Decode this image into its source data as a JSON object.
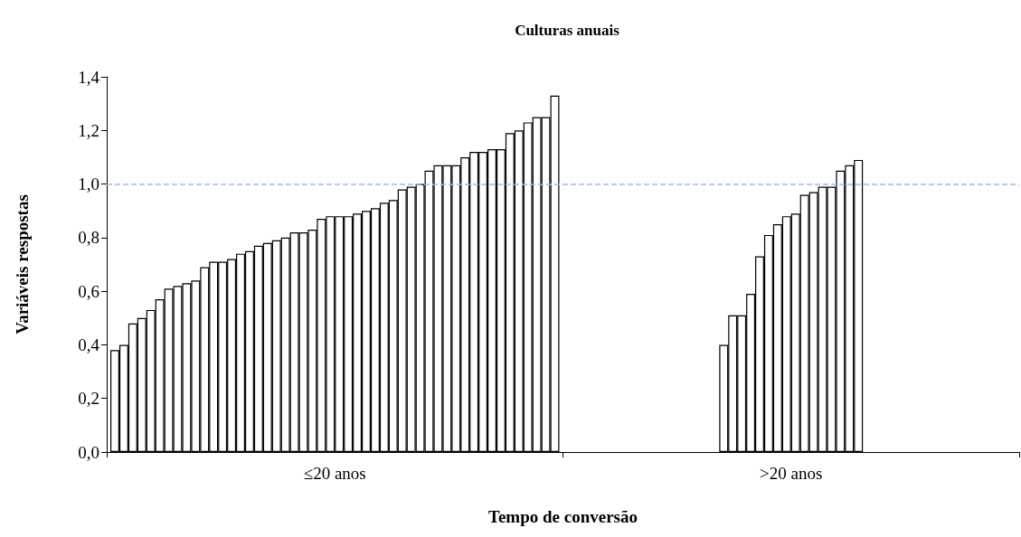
{
  "chart_data": {
    "type": "bar",
    "title": "Culturas anuais",
    "xlabel": "Tempo de conversão",
    "ylabel": "Variáveis respostas",
    "categories": [
      "≤20 anos",
      ">20 anos"
    ],
    "color": "#ffffff",
    "ylim": [
      0,
      1.4
    ],
    "yticks": [
      {
        "value": 0,
        "label": "0,0"
      },
      {
        "value": 0.2,
        "label": "0,2"
      },
      {
        "value": 0.4,
        "label": "0,4"
      },
      {
        "value": 0.6,
        "label": "0,6"
      },
      {
        "value": 0.8,
        "label": "0,8"
      },
      {
        "value": 1,
        "label": "1,0"
      },
      {
        "value": 1.2,
        "label": "1,2"
      },
      {
        "value": 1.4,
        "label": "1,4"
      }
    ],
    "grid": false,
    "ref_lines": [
      {
        "axis": "y",
        "value": 1,
        "color": "#9dbde8",
        "line_style": "dashed"
      }
    ],
    "series": [
      {
        "values": [
          0.38,
          null
        ]
      },
      {
        "values": [
          0.4,
          null
        ]
      },
      {
        "values": [
          0.48,
          null
        ]
      },
      {
        "values": [
          0.5,
          null
        ]
      },
      {
        "values": [
          0.53,
          null
        ]
      },
      {
        "values": [
          0.57,
          null
        ]
      },
      {
        "values": [
          0.61,
          null
        ]
      },
      {
        "values": [
          0.62,
          null
        ]
      },
      {
        "values": [
          0.63,
          null
        ]
      },
      {
        "values": [
          0.64,
          null
        ]
      },
      {
        "values": [
          0.69,
          null
        ]
      },
      {
        "values": [
          0.71,
          null
        ]
      },
      {
        "values": [
          0.71,
          null
        ]
      },
      {
        "values": [
          0.72,
          null
        ]
      },
      {
        "values": [
          0.74,
          null
        ]
      },
      {
        "values": [
          0.75,
          null
        ]
      },
      {
        "values": [
          0.77,
          null
        ]
      },
      {
        "values": [
          0.78,
          0.4
        ]
      },
      {
        "values": [
          0.79,
          0.51
        ]
      },
      {
        "values": [
          0.8,
          0.51
        ]
      },
      {
        "values": [
          0.82,
          0.59
        ]
      },
      {
        "values": [
          0.82,
          0.73
        ]
      },
      {
        "values": [
          0.83,
          0.81
        ]
      },
      {
        "values": [
          0.87,
          0.85
        ]
      },
      {
        "values": [
          0.88,
          0.88
        ]
      },
      {
        "values": [
          0.88,
          0.89
        ]
      },
      {
        "values": [
          0.88,
          0.96
        ]
      },
      {
        "values": [
          0.89,
          0.97
        ]
      },
      {
        "values": [
          0.9,
          0.99
        ]
      },
      {
        "values": [
          0.91,
          0.99
        ]
      },
      {
        "values": [
          0.93,
          1.05
        ]
      },
      {
        "values": [
          0.94,
          1.07
        ]
      },
      {
        "values": [
          0.98,
          1.09
        ]
      },
      {
        "values": [
          0.99,
          null
        ]
      },
      {
        "values": [
          1.0,
          null
        ]
      },
      {
        "values": [
          1.05,
          null
        ]
      },
      {
        "values": [
          1.07,
          null
        ]
      },
      {
        "values": [
          1.07,
          null
        ]
      },
      {
        "values": [
          1.07,
          null
        ]
      },
      {
        "values": [
          1.1,
          null
        ]
      },
      {
        "values": [
          1.12,
          null
        ]
      },
      {
        "values": [
          1.12,
          null
        ]
      },
      {
        "values": [
          1.13,
          null
        ]
      },
      {
        "values": [
          1.13,
          null
        ]
      },
      {
        "values": [
          1.19,
          null
        ]
      },
      {
        "values": [
          1.2,
          null
        ]
      },
      {
        "values": [
          1.23,
          null
        ]
      },
      {
        "values": [
          1.25,
          null
        ]
      },
      {
        "values": [
          1.25,
          null
        ]
      },
      {
        "values": [
          1.33,
          null
        ]
      }
    ]
  }
}
